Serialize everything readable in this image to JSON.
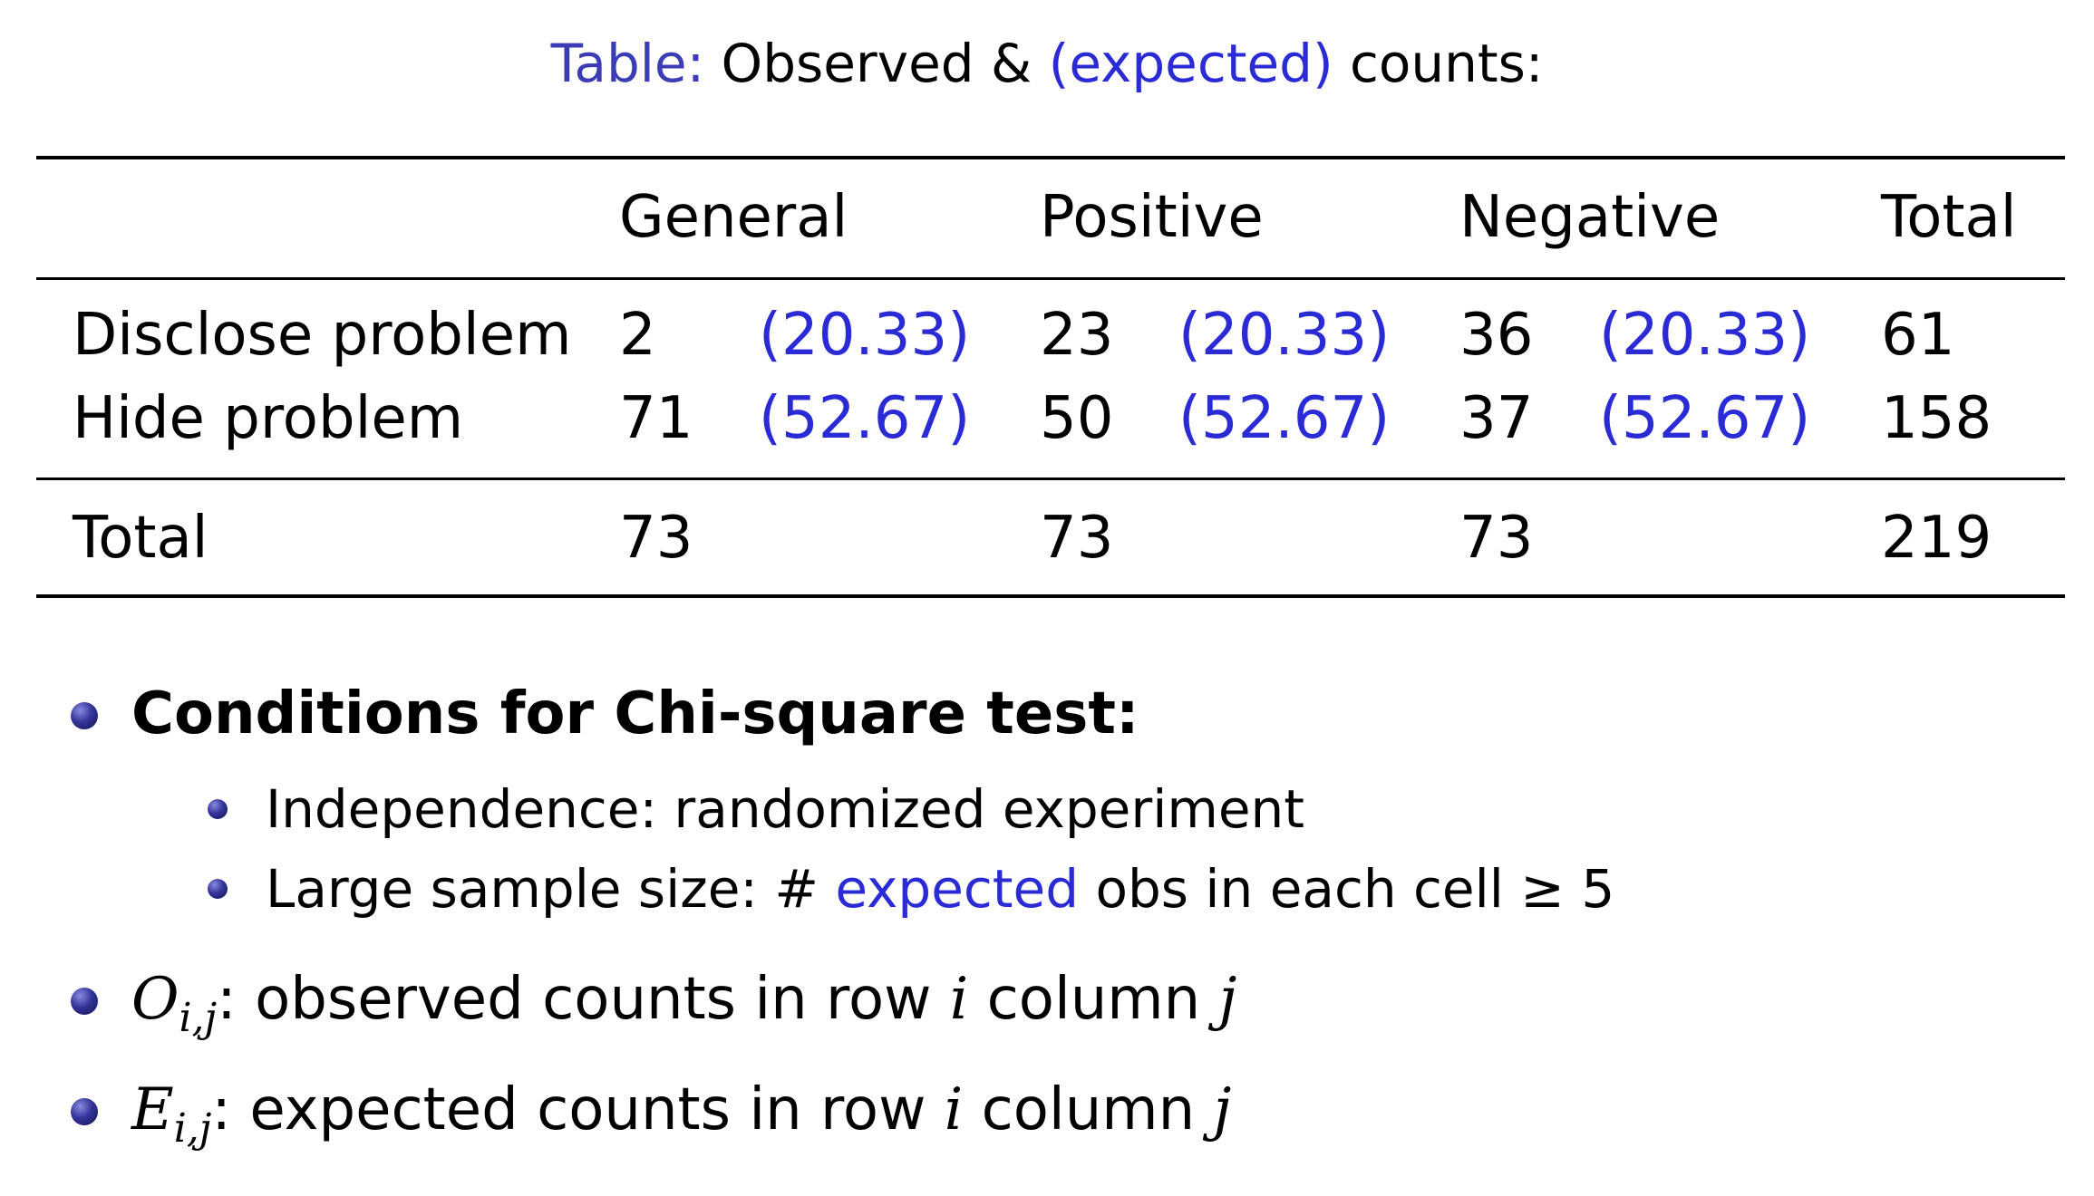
{
  "caption": {
    "label": "Table:",
    "text_observed": "Observed &",
    "text_expected": "(expected)",
    "text_end": "counts:"
  },
  "table": {
    "columns": [
      "General",
      "Positive",
      "Negative",
      "Total"
    ],
    "rows": [
      {
        "label": "Disclose problem",
        "cells": [
          {
            "observed": "2",
            "expected": "(20.33)"
          },
          {
            "observed": "23",
            "expected": "(20.33)"
          },
          {
            "observed": "36",
            "expected": "(20.33)"
          }
        ],
        "total": "61"
      },
      {
        "label": "Hide problem",
        "cells": [
          {
            "observed": "71",
            "expected": "(52.67)"
          },
          {
            "observed": "50",
            "expected": "(52.67)"
          },
          {
            "observed": "37",
            "expected": "(52.67)"
          }
        ],
        "total": "158"
      }
    ],
    "total_row": {
      "label": "Total",
      "values": [
        "73",
        "73",
        "73"
      ],
      "total": "219"
    }
  },
  "bullets": {
    "conditions_title": "Conditions for Chi-square test:",
    "independence": "Independence: randomized experiment",
    "sample_size_prefix": "Large sample size: # ",
    "sample_size_expected": "expected",
    "sample_size_suffix": " obs in each cell ≥ 5",
    "observed_symbol": "O",
    "observed_subscript": "i,j",
    "observed_text_1": ": observed counts in row ",
    "observed_i": "i",
    "observed_text_2": " column ",
    "observed_j": "j",
    "expected_symbol": "E",
    "expected_subscript": "i,j",
    "expected_text_1": ": expected counts in row ",
    "expected_i": "i",
    "expected_text_2": " column ",
    "expected_j": "j"
  },
  "colors": {
    "accent_blue": "#2b2bd6",
    "caption_label": "#3c3cb4",
    "bullet": "#34349a"
  }
}
